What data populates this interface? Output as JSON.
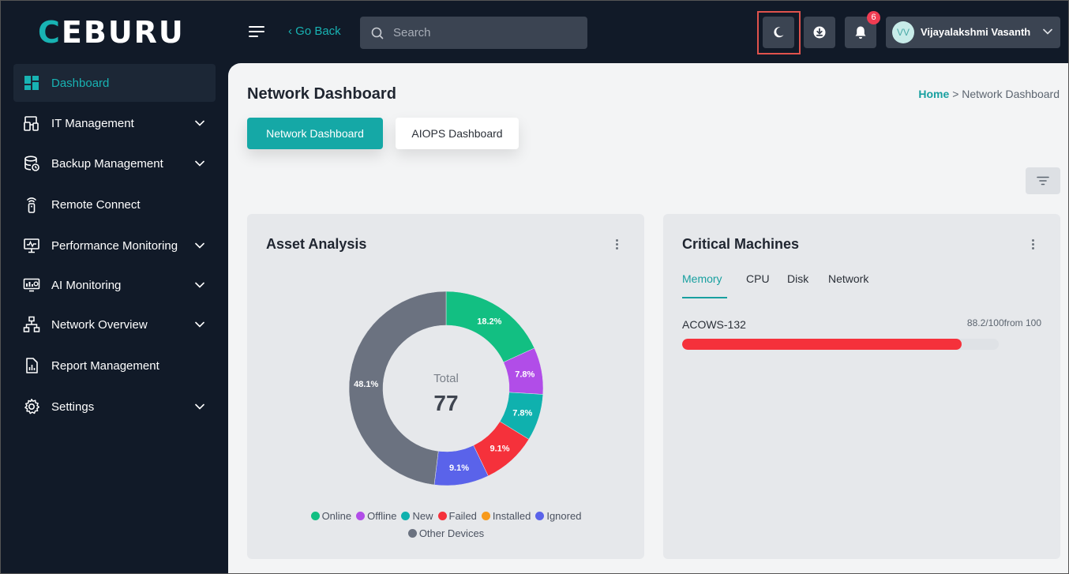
{
  "brand": {
    "logo_text": "CEBURU"
  },
  "header": {
    "go_back": "‹ Go Back",
    "search_placeholder": "Search",
    "notifications_count": "6",
    "user": {
      "initials": "VV",
      "name": "Vijayalakshmi Vasanth"
    }
  },
  "sidebar": {
    "items": [
      {
        "label": "Dashboard",
        "icon": "dashboard-icon",
        "active": true,
        "expandable": false
      },
      {
        "label": "IT Management",
        "icon": "it-management-icon",
        "active": false,
        "expandable": true
      },
      {
        "label": "Backup Management",
        "icon": "backup-icon",
        "active": false,
        "expandable": true
      },
      {
        "label": "Remote Connect",
        "icon": "remote-icon",
        "active": false,
        "expandable": false
      },
      {
        "label": "Performance Monitoring",
        "icon": "monitor-icon",
        "active": false,
        "expandable": true
      },
      {
        "label": "AI Monitoring",
        "icon": "ai-monitor-icon",
        "active": false,
        "expandable": true
      },
      {
        "label": "Network Overview",
        "icon": "network-icon",
        "active": false,
        "expandable": true
      },
      {
        "label": "Report Management",
        "icon": "report-icon",
        "active": false,
        "expandable": false
      },
      {
        "label": "Settings",
        "icon": "settings-icon",
        "active": false,
        "expandable": true
      }
    ]
  },
  "page": {
    "title": "Network Dashboard",
    "breadcrumb": {
      "home": "Home",
      "separator": ">",
      "current": "Network Dashboard"
    },
    "tabs": {
      "active": "Network Dashboard",
      "inactive": "AIOPS Dashboard"
    }
  },
  "asset_analysis": {
    "title": "Asset Analysis",
    "center_label": "Total",
    "total": "77",
    "segments": [
      {
        "name": "Online",
        "percent": 18.2,
        "label": "18.2%",
        "color": "#12bf82"
      },
      {
        "name": "Offline",
        "percent": 7.8,
        "label": "7.8%",
        "color": "#b14de8"
      },
      {
        "name": "New",
        "percent": 7.8,
        "label": "7.8%",
        "color": "#0fb1ae"
      },
      {
        "name": "Failed",
        "percent": 9.1,
        "label": "9.1%",
        "color": "#f5313b"
      },
      {
        "name": "Installed",
        "percent": 0,
        "label": "",
        "color": "#f79a1c"
      },
      {
        "name": "Ignored",
        "percent": 9.1,
        "label": "9.1%",
        "color": "#5a63ea"
      },
      {
        "name": "Other Devices",
        "percent": 48.1,
        "label": "48.1%",
        "color": "#6b7280"
      }
    ]
  },
  "critical_machines": {
    "title": "Critical Machines",
    "tabs": [
      "Memory",
      "CPU",
      "Disk",
      "Network"
    ],
    "active_tab": "Memory",
    "machines": [
      {
        "name": "ACOWS-132",
        "value_text": "88.2/100",
        "suffix": "from 100",
        "value": 88.2,
        "max": 100,
        "color": "#f5313b"
      }
    ]
  }
}
